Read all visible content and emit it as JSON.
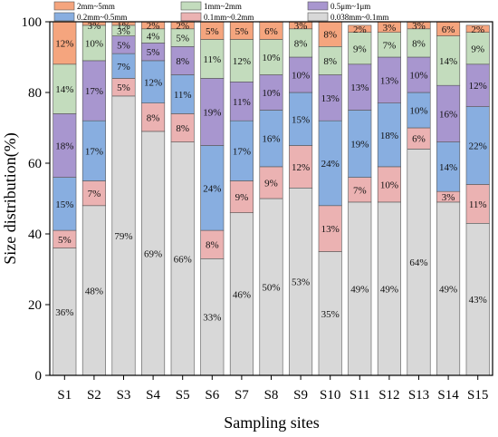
{
  "chart_data": {
    "type": "bar",
    "stacked": true,
    "xlabel": "Sampling sites",
    "ylabel": "Size distribution(%)",
    "ylim": [
      0,
      100
    ],
    "yticks": [
      0,
      20,
      40,
      60,
      80,
      100
    ],
    "grid": false,
    "legend_position": "top",
    "categories": [
      "S1",
      "S2",
      "S3",
      "S4",
      "S5",
      "S6",
      "S7",
      "S8",
      "S9",
      "S10",
      "S11",
      "S12",
      "S13",
      "S14",
      "S15"
    ],
    "series": [
      {
        "name": "0.038mm~0.1mm",
        "color": "#d8d8d8",
        "values": [
          36,
          48,
          79,
          69,
          66,
          33,
          46,
          50,
          53,
          35,
          49,
          49,
          64,
          49,
          43
        ],
        "labels": [
          "36%",
          "48%",
          "79%",
          "69%",
          "66%",
          "33%",
          "46%",
          "50%",
          "53%",
          "35%",
          "49%",
          "49%",
          "64%",
          "49%",
          "43%"
        ]
      },
      {
        "name": "0.1mm~0.2mm",
        "color": "#ebb2b2",
        "values": [
          5,
          7,
          5,
          8,
          8,
          8,
          9,
          9,
          12,
          13,
          7,
          10,
          6,
          3,
          11
        ],
        "labels": [
          "5%",
          "7%",
          "5%",
          "8%",
          "8%",
          "8%",
          "9%",
          "9%",
          "12%",
          "13%",
          "7%",
          "10%",
          "6%",
          "3%",
          "11%"
        ]
      },
      {
        "name": "0.2mm~0.5mm",
        "color": "#88aee0",
        "values": [
          15,
          17,
          7,
          12,
          11,
          24,
          17,
          16,
          15,
          24,
          19,
          18,
          10,
          14,
          22
        ],
        "labels": [
          "15%",
          "17%",
          "7%",
          "12%",
          "11%",
          "24%",
          "17%",
          "16%",
          "15%",
          "24%",
          "19%",
          "18%",
          "10%",
          "14%",
          "22%"
        ]
      },
      {
        "name": "0.5μm~1μm",
        "color": "#a896cf",
        "values": [
          18,
          17,
          5,
          5,
          8,
          19,
          11,
          10,
          10,
          13,
          13,
          13,
          10,
          16,
          12
        ],
        "labels": [
          "18%",
          "17%",
          "5%",
          "5%",
          "8%",
          "19%",
          "11%",
          "10%",
          "10%",
          "13%",
          "13%",
          "13%",
          "10%",
          "16%",
          "12%"
        ]
      },
      {
        "name": "1mm~2mm",
        "color": "#c3dcbd",
        "values": [
          14,
          10,
          3,
          4,
          5,
          11,
          12,
          10,
          8,
          8,
          9,
          7,
          8,
          14,
          9
        ],
        "labels": [
          "14%",
          "10%",
          "3%",
          "4%",
          "5%",
          "11%",
          "12%",
          "10%",
          "8%",
          "8%",
          "9%",
          "7%",
          "8%",
          "14%",
          "9%"
        ]
      },
      {
        "name": "2mm~5mm",
        "color": "#f5a57e",
        "values": [
          12,
          3,
          1,
          2,
          2,
          5,
          5,
          6,
          3,
          8,
          2,
          3,
          3,
          6,
          2
        ],
        "labels": [
          "12%",
          "3%",
          "1%",
          "2%",
          "2%",
          "5%",
          "5%",
          "6%",
          "3%",
          "8%",
          "2%",
          "3%",
          "3%",
          "6%",
          "2%"
        ]
      }
    ]
  }
}
